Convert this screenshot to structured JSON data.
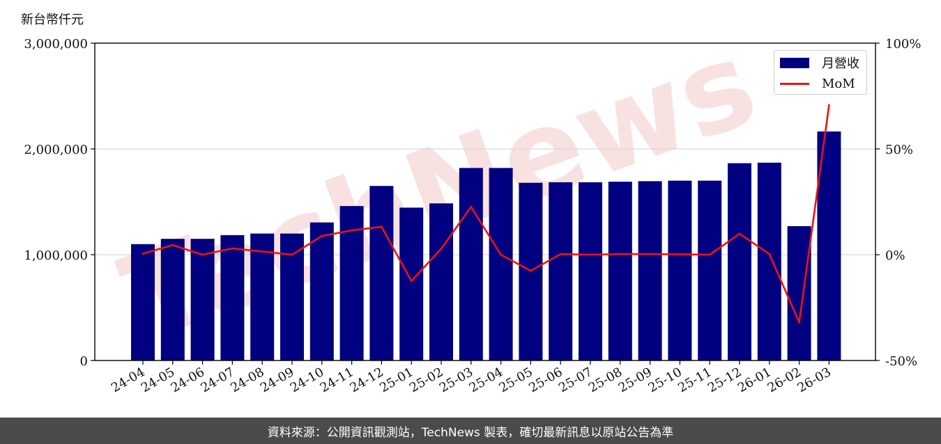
{
  "unit_label": "新台幣仟元",
  "footer": "資料來源：公開資訊觀測站，TechNews 製表，確切最新訊息以原站公告為準",
  "watermark": "TechNews",
  "colors": {
    "bar": "#000080",
    "line": "#ee1111",
    "watermark": "#f3c9c9",
    "footer_bg": "#4b4b4b"
  },
  "chart_data": {
    "type": "bar",
    "categories": [
      "24-04",
      "24-05",
      "24-06",
      "24-07",
      "24-08",
      "24-09",
      "24-10",
      "24-11",
      "24-12",
      "25-01",
      "25-02",
      "25-03",
      "25-04",
      "25-05",
      "25-06",
      "25-07",
      "25-08",
      "25-09",
      "25-10",
      "25-11",
      "25-12",
      "26-01",
      "26-02",
      "26-03"
    ],
    "series": [
      {
        "name": "月營收",
        "type": "bar",
        "axis": "left",
        "values": [
          1100000,
          1150000,
          1150000,
          1185000,
          1200000,
          1200000,
          1305000,
          1460000,
          1650000,
          1445000,
          1485000,
          1820000,
          1820000,
          1680000,
          1685000,
          1685000,
          1690000,
          1695000,
          1700000,
          1700000,
          1865000,
          1870000,
          1270000,
          2165000
        ]
      },
      {
        "name": "MoM",
        "type": "line",
        "axis": "right",
        "values": [
          0.5,
          4.5,
          0.0,
          3.0,
          1.5,
          0.0,
          8.8,
          11.5,
          13.2,
          -12.4,
          2.8,
          22.6,
          0.0,
          -7.6,
          0.3,
          0.0,
          0.3,
          0.3,
          0.2,
          0.0,
          9.9,
          0.3,
          -32.0,
          70.7
        ]
      }
    ],
    "y_left": {
      "ylim": [
        0,
        3000000
      ],
      "ticks": [
        0,
        1000000,
        2000000,
        3000000
      ],
      "tick_labels": [
        "0",
        "1,000,000",
        "2,000,000",
        "3,000,000"
      ]
    },
    "y_right": {
      "ylim": [
        -50,
        100
      ],
      "ticks": [
        -50,
        0,
        50,
        100
      ],
      "tick_labels": [
        "-50%",
        "0%",
        "50%",
        "100%"
      ]
    },
    "grid": true,
    "legend_position": "top-right"
  }
}
